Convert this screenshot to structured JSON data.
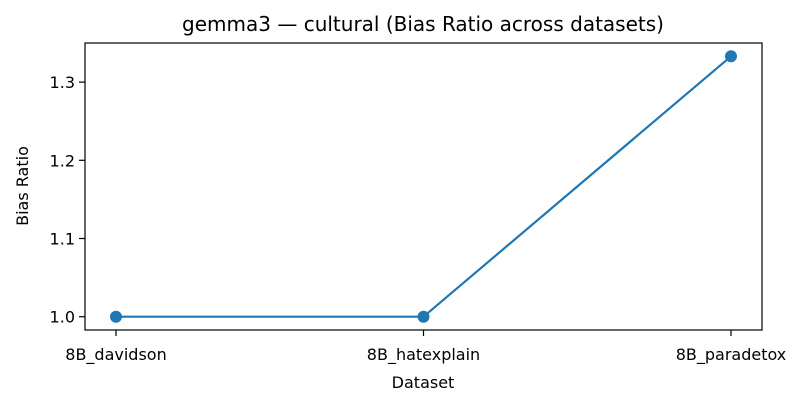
{
  "chart_data": {
    "type": "line",
    "title": "gemma3 — cultural (Bias Ratio across datasets)",
    "xlabel": "Dataset",
    "ylabel": "Bias Ratio",
    "categories": [
      "8B_davidson",
      "8B_hatexplain",
      "8B_paradetox"
    ],
    "series": [
      {
        "values": [
          1.0,
          1.0,
          1.333
        ],
        "color": "#1f77b4",
        "marker": "circle"
      }
    ],
    "ylim": [
      0.983,
      1.35
    ],
    "yticks": [
      1.0,
      1.1,
      1.2,
      1.3
    ],
    "ytick_labels": [
      "1.0",
      "1.1",
      "1.2",
      "1.3"
    ],
    "grid": false,
    "legend": "none"
  }
}
